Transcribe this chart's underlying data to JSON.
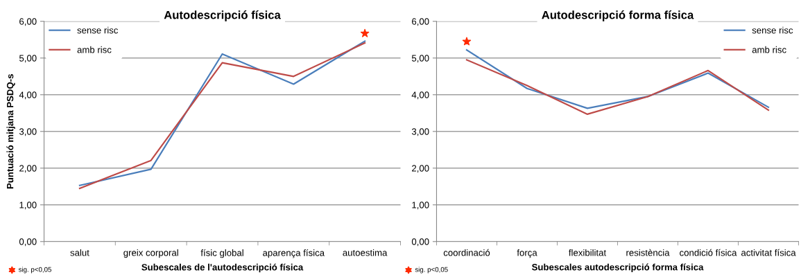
{
  "chart_data": [
    {
      "type": "line",
      "title": "Autodescripció física",
      "xlabel": "Subescales de l'autodescripció física",
      "ylabel": "Puntuació mitjana PSDQ-s",
      "categories": [
        "salut",
        "greix corporal",
        "físic global",
        "aparença física",
        "autoestima"
      ],
      "series": [
        {
          "name": "sense risc",
          "color": "#4a7ebb",
          "values": [
            1.53,
            1.97,
            5.11,
            4.29,
            5.46
          ]
        },
        {
          "name": "amb risc",
          "color": "#be4b48",
          "values": [
            1.45,
            2.21,
            4.87,
            4.5,
            5.41
          ]
        },
        {
          "type": "scatter",
          "marker": "star",
          "color": "#ff2a00",
          "values": [
            null,
            null,
            null,
            null,
            5.67
          ]
        }
      ],
      "ylim": [
        0,
        6
      ],
      "yticks": [
        {
          "value": 0,
          "label": "0,00"
        },
        {
          "value": 1,
          "label": "1,00"
        },
        {
          "value": 2,
          "label": "2,00"
        },
        {
          "value": 3,
          "label": "3,00"
        },
        {
          "value": 4,
          "label": "4,00"
        },
        {
          "value": 5,
          "label": "5,00"
        },
        {
          "value": 6,
          "label": "6,00"
        }
      ],
      "grid": "y",
      "legend": "top left",
      "annotations": [
        "sig. p<0,05"
      ]
    },
    {
      "type": "line",
      "title": "Autodescripció forma física",
      "xlabel": "Subescales autodescripció forma física",
      "categories": [
        "coordinació",
        "força",
        "flexibilitat",
        "resistència",
        "condició física",
        "activitat física"
      ],
      "series": [
        {
          "name": "sense risc",
          "color": "#4a7ebb",
          "values": [
            5.22,
            4.17,
            3.63,
            3.95,
            4.59,
            3.66
          ]
        },
        {
          "name": "amb risc",
          "color": "#be4b48",
          "values": [
            4.95,
            4.25,
            3.47,
            3.95,
            4.66,
            3.58
          ]
        },
        {
          "type": "scatter",
          "marker": "star",
          "color": "#ff2a00",
          "values": [
            5.45,
            null,
            null,
            null,
            null,
            null
          ]
        }
      ],
      "ylim": [
        0,
        6
      ],
      "yticks": [
        {
          "value": 0,
          "label": "0,00"
        },
        {
          "value": 1,
          "label": "1,00"
        },
        {
          "value": 2,
          "label": "2,00"
        },
        {
          "value": 3,
          "label": "3,00"
        },
        {
          "value": 4,
          "label": "4,00"
        },
        {
          "value": 5,
          "label": "5,00"
        },
        {
          "value": 6,
          "label": "6,00"
        }
      ],
      "grid": "y",
      "legend": "top right",
      "annotations": [
        "sig. p<0,05"
      ]
    }
  ]
}
